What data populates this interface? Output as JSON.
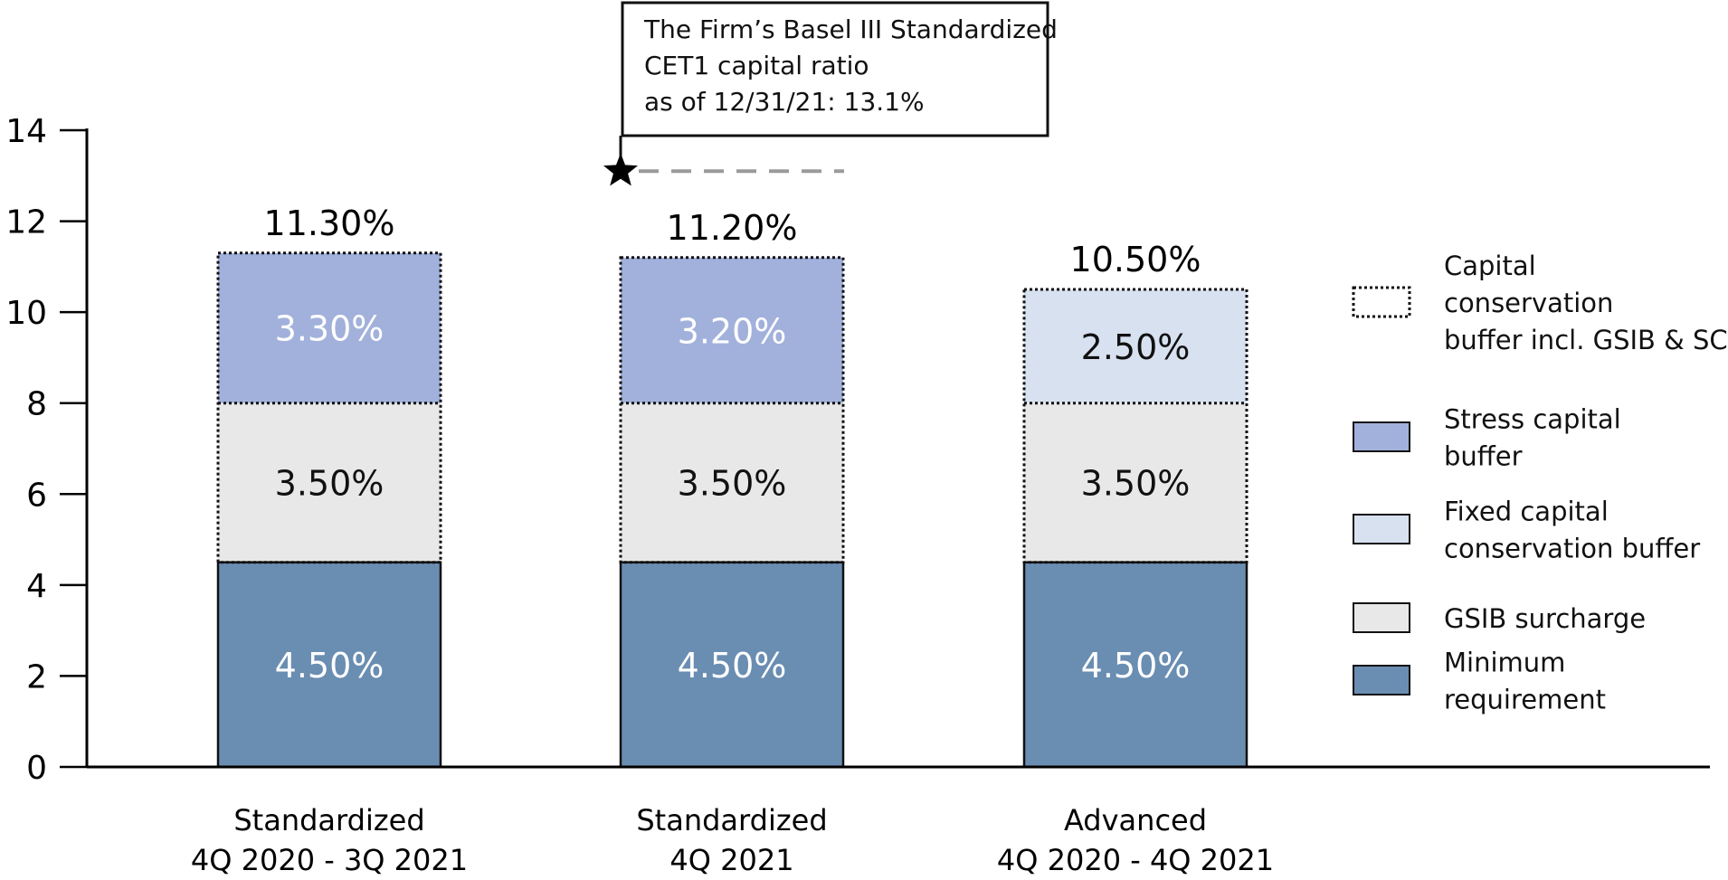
{
  "chart_data": {
    "type": "bar",
    "stacked": true,
    "categories": [
      [
        "Standardized",
        "4Q 2020 - 3Q 2021"
      ],
      [
        "Standardized",
        "4Q 2021"
      ],
      [
        "Advanced",
        "4Q 2020 - 4Q 2021"
      ]
    ],
    "series": [
      {
        "name": "Minimum requirement",
        "values": [
          4.5,
          4.5,
          4.5
        ],
        "labels": [
          "4.50%",
          "4.50%",
          "4.50%"
        ],
        "color": "#6a8db2",
        "label_color": "#ffffff"
      },
      {
        "name": "GSIB surcharge",
        "values": [
          3.5,
          3.5,
          3.5
        ],
        "labels": [
          "3.50%",
          "3.50%",
          "3.50%"
        ],
        "color": "#e8e8e8",
        "label_color": "#111111"
      },
      {
        "name": "Stress capital buffer",
        "values": [
          3.3,
          3.2,
          null
        ],
        "labels": [
          "3.30%",
          "3.20%",
          null
        ],
        "color": "#a2b1db",
        "label_color": "#ffffff"
      },
      {
        "name": "Fixed capital conservation buffer",
        "values": [
          null,
          null,
          2.5
        ],
        "labels": [
          null,
          null,
          "2.50%"
        ],
        "color": "#d8e1f0",
        "label_color": "#111111"
      }
    ],
    "totals": [
      "11.30%",
      "11.20%",
      "10.50%"
    ],
    "total_values": [
      11.3,
      11.2,
      10.5
    ],
    "ylim": [
      0,
      14
    ],
    "yticks": [
      "0",
      "2",
      "4",
      "6",
      "8",
      "10",
      "12",
      "14"
    ],
    "ytick_values": [
      0,
      2,
      4,
      6,
      8,
      10,
      12,
      14
    ],
    "grid": false,
    "legend_position": "right",
    "legend": [
      {
        "name": "Capital conservation buffer incl. GSIB & SCB",
        "lines": [
          "Capital",
          "conservation",
          "buffer incl. GSIB & SCB"
        ],
        "swatch": "dotted"
      },
      {
        "name": "Stress capital buffer",
        "lines": [
          "Stress capital",
          "buffer"
        ],
        "swatch": "#a2b1db"
      },
      {
        "name": "Fixed capital conservation buffer",
        "lines": [
          "Fixed capital",
          "conservation buffer"
        ],
        "swatch": "#d8e1f0"
      },
      {
        "name": "GSIB surcharge",
        "lines": [
          "GSIB surcharge"
        ],
        "swatch": "#e8e8e8"
      },
      {
        "name": "Minimum requirement",
        "lines": [
          "Minimum",
          "requirement"
        ],
        "swatch": "#6a8db2"
      }
    ],
    "annotation": {
      "lines": [
        "The Firm’s Basel III Standardized",
        "CET1 capital ratio",
        "as of 12/31/21: 13.1%"
      ],
      "value": 13.1,
      "category_index": 1
    }
  }
}
